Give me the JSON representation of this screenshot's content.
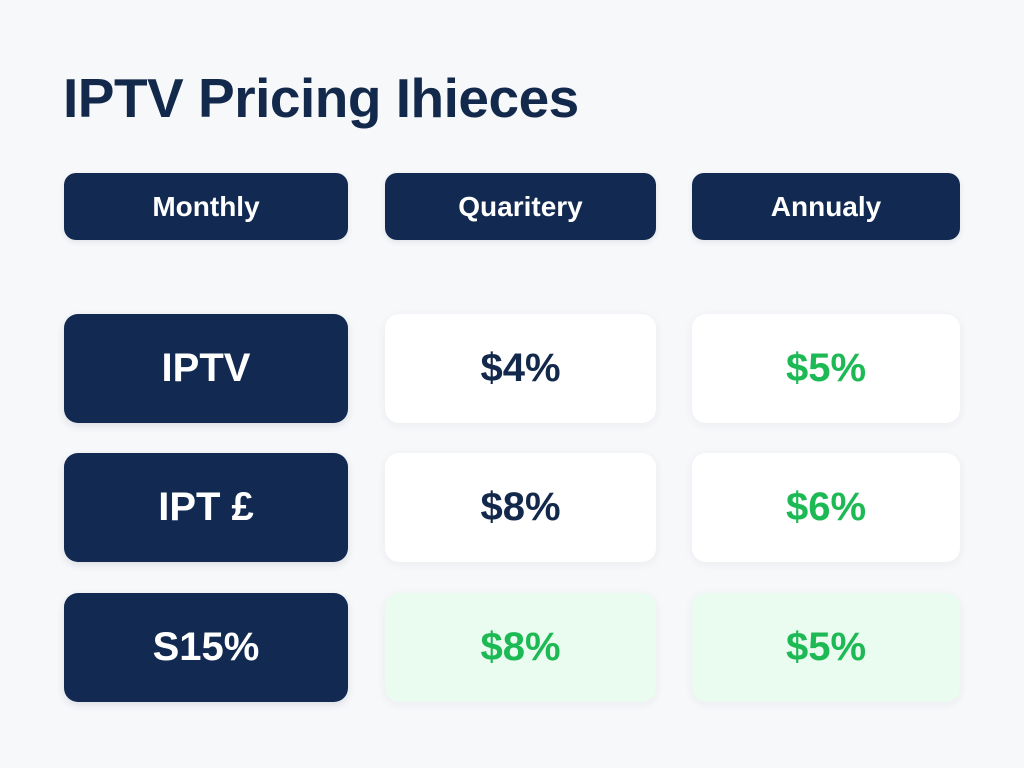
{
  "page": {
    "title": "IPTV Pricing Ihieces"
  },
  "tabs": [
    {
      "label": "Monthly"
    },
    {
      "label": "Quaritery"
    },
    {
      "label": "Annualy"
    }
  ],
  "rows": [
    {
      "label": "IPTV",
      "quarterly": {
        "value": "$4%",
        "color": "#13294b"
      },
      "annual": {
        "value": "$5%",
        "color": "#1db954"
      }
    },
    {
      "label": "IPT £",
      "quarterly": {
        "value": "$8%",
        "color": "#13294b"
      },
      "annual": {
        "value": "$6%",
        "color": "#1db954"
      }
    },
    {
      "label": "S15%",
      "quarterly": {
        "value": "$8%",
        "color": "#1db954"
      },
      "annual": {
        "value": "$5%",
        "color": "#1db954"
      }
    }
  ],
  "colors": {
    "navy": "#122a52",
    "green": "#1db954",
    "highlight_bg": "#eafbf0",
    "background": "#f7f8fa"
  }
}
